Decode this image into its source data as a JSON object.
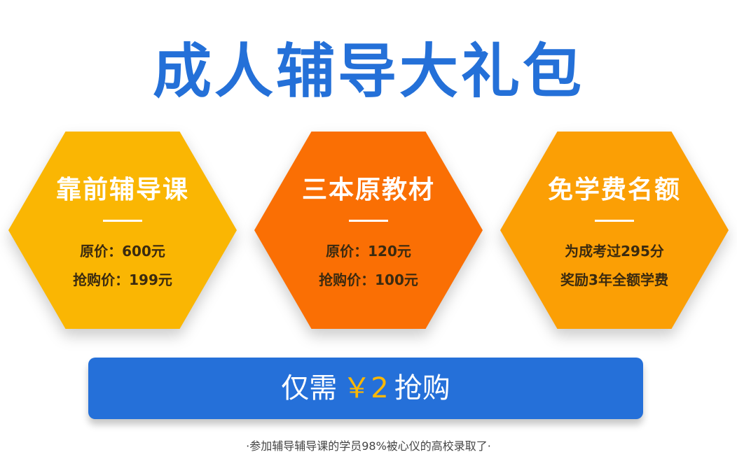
{
  "title": "成人辅导大礼包",
  "packages": [
    {
      "title": "靠前辅导课",
      "line1": "原价：600元",
      "line2": "抢购价：199元"
    },
    {
      "title": "三本原教材",
      "line1": "原价：120元",
      "line2": "抢购价：100元"
    },
    {
      "title": "免学费名额",
      "line1": "为成考过295分",
      "line2": "奖励3年全额学费"
    }
  ],
  "cta": {
    "prefix": "仅需",
    "price": "￥2",
    "suffix": "抢购"
  },
  "footnote": "·参加辅导辅导课的学员98%被心仪的高校录取了·",
  "colors": {
    "brand_blue": "#2470d8",
    "hex_yellow": "#fab603",
    "hex_orange": "#fa6f04",
    "hex_amber": "#fb9f05",
    "price_accent": "#ffb800"
  }
}
